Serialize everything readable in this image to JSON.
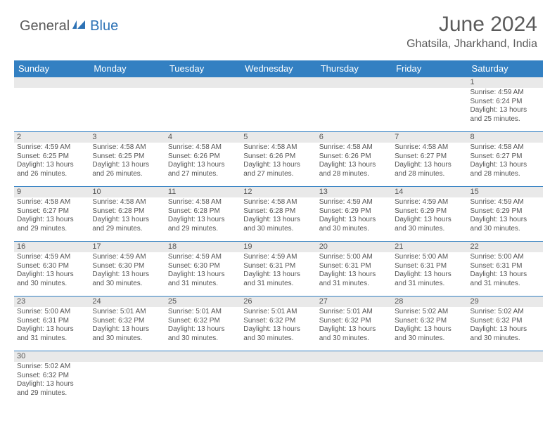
{
  "logo": {
    "part1": "General",
    "part2": "Blue"
  },
  "title": "June 2024",
  "location": "Ghatsila, Jharkhand, India",
  "colors": {
    "header_bg": "#3380c2",
    "header_text": "#ffffff",
    "daynum_bg": "#e9e9e9",
    "text": "#555555",
    "rule": "#3380c2",
    "logo_gray": "#5a5a5a",
    "logo_blue": "#2d72b5"
  },
  "weekdays": [
    "Sunday",
    "Monday",
    "Tuesday",
    "Wednesday",
    "Thursday",
    "Friday",
    "Saturday"
  ],
  "weeks": [
    [
      null,
      null,
      null,
      null,
      null,
      null,
      {
        "n": "1",
        "sr": "4:59 AM",
        "ss": "6:24 PM",
        "dl": "13 hours and 25 minutes."
      }
    ],
    [
      {
        "n": "2",
        "sr": "4:59 AM",
        "ss": "6:25 PM",
        "dl": "13 hours and 26 minutes."
      },
      {
        "n": "3",
        "sr": "4:58 AM",
        "ss": "6:25 PM",
        "dl": "13 hours and 26 minutes."
      },
      {
        "n": "4",
        "sr": "4:58 AM",
        "ss": "6:26 PM",
        "dl": "13 hours and 27 minutes."
      },
      {
        "n": "5",
        "sr": "4:58 AM",
        "ss": "6:26 PM",
        "dl": "13 hours and 27 minutes."
      },
      {
        "n": "6",
        "sr": "4:58 AM",
        "ss": "6:26 PM",
        "dl": "13 hours and 28 minutes."
      },
      {
        "n": "7",
        "sr": "4:58 AM",
        "ss": "6:27 PM",
        "dl": "13 hours and 28 minutes."
      },
      {
        "n": "8",
        "sr": "4:58 AM",
        "ss": "6:27 PM",
        "dl": "13 hours and 28 minutes."
      }
    ],
    [
      {
        "n": "9",
        "sr": "4:58 AM",
        "ss": "6:27 PM",
        "dl": "13 hours and 29 minutes."
      },
      {
        "n": "10",
        "sr": "4:58 AM",
        "ss": "6:28 PM",
        "dl": "13 hours and 29 minutes."
      },
      {
        "n": "11",
        "sr": "4:58 AM",
        "ss": "6:28 PM",
        "dl": "13 hours and 29 minutes."
      },
      {
        "n": "12",
        "sr": "4:58 AM",
        "ss": "6:28 PM",
        "dl": "13 hours and 30 minutes."
      },
      {
        "n": "13",
        "sr": "4:59 AM",
        "ss": "6:29 PM",
        "dl": "13 hours and 30 minutes."
      },
      {
        "n": "14",
        "sr": "4:59 AM",
        "ss": "6:29 PM",
        "dl": "13 hours and 30 minutes."
      },
      {
        "n": "15",
        "sr": "4:59 AM",
        "ss": "6:29 PM",
        "dl": "13 hours and 30 minutes."
      }
    ],
    [
      {
        "n": "16",
        "sr": "4:59 AM",
        "ss": "6:30 PM",
        "dl": "13 hours and 30 minutes."
      },
      {
        "n": "17",
        "sr": "4:59 AM",
        "ss": "6:30 PM",
        "dl": "13 hours and 30 minutes."
      },
      {
        "n": "18",
        "sr": "4:59 AM",
        "ss": "6:30 PM",
        "dl": "13 hours and 31 minutes."
      },
      {
        "n": "19",
        "sr": "4:59 AM",
        "ss": "6:31 PM",
        "dl": "13 hours and 31 minutes."
      },
      {
        "n": "20",
        "sr": "5:00 AM",
        "ss": "6:31 PM",
        "dl": "13 hours and 31 minutes."
      },
      {
        "n": "21",
        "sr": "5:00 AM",
        "ss": "6:31 PM",
        "dl": "13 hours and 31 minutes."
      },
      {
        "n": "22",
        "sr": "5:00 AM",
        "ss": "6:31 PM",
        "dl": "13 hours and 31 minutes."
      }
    ],
    [
      {
        "n": "23",
        "sr": "5:00 AM",
        "ss": "6:31 PM",
        "dl": "13 hours and 31 minutes."
      },
      {
        "n": "24",
        "sr": "5:01 AM",
        "ss": "6:32 PM",
        "dl": "13 hours and 30 minutes."
      },
      {
        "n": "25",
        "sr": "5:01 AM",
        "ss": "6:32 PM",
        "dl": "13 hours and 30 minutes."
      },
      {
        "n": "26",
        "sr": "5:01 AM",
        "ss": "6:32 PM",
        "dl": "13 hours and 30 minutes."
      },
      {
        "n": "27",
        "sr": "5:01 AM",
        "ss": "6:32 PM",
        "dl": "13 hours and 30 minutes."
      },
      {
        "n": "28",
        "sr": "5:02 AM",
        "ss": "6:32 PM",
        "dl": "13 hours and 30 minutes."
      },
      {
        "n": "29",
        "sr": "5:02 AM",
        "ss": "6:32 PM",
        "dl": "13 hours and 30 minutes."
      }
    ],
    [
      {
        "n": "30",
        "sr": "5:02 AM",
        "ss": "6:32 PM",
        "dl": "13 hours and 29 minutes."
      },
      null,
      null,
      null,
      null,
      null,
      null
    ]
  ],
  "labels": {
    "sunrise": "Sunrise:",
    "sunset": "Sunset:",
    "daylight": "Daylight:"
  }
}
